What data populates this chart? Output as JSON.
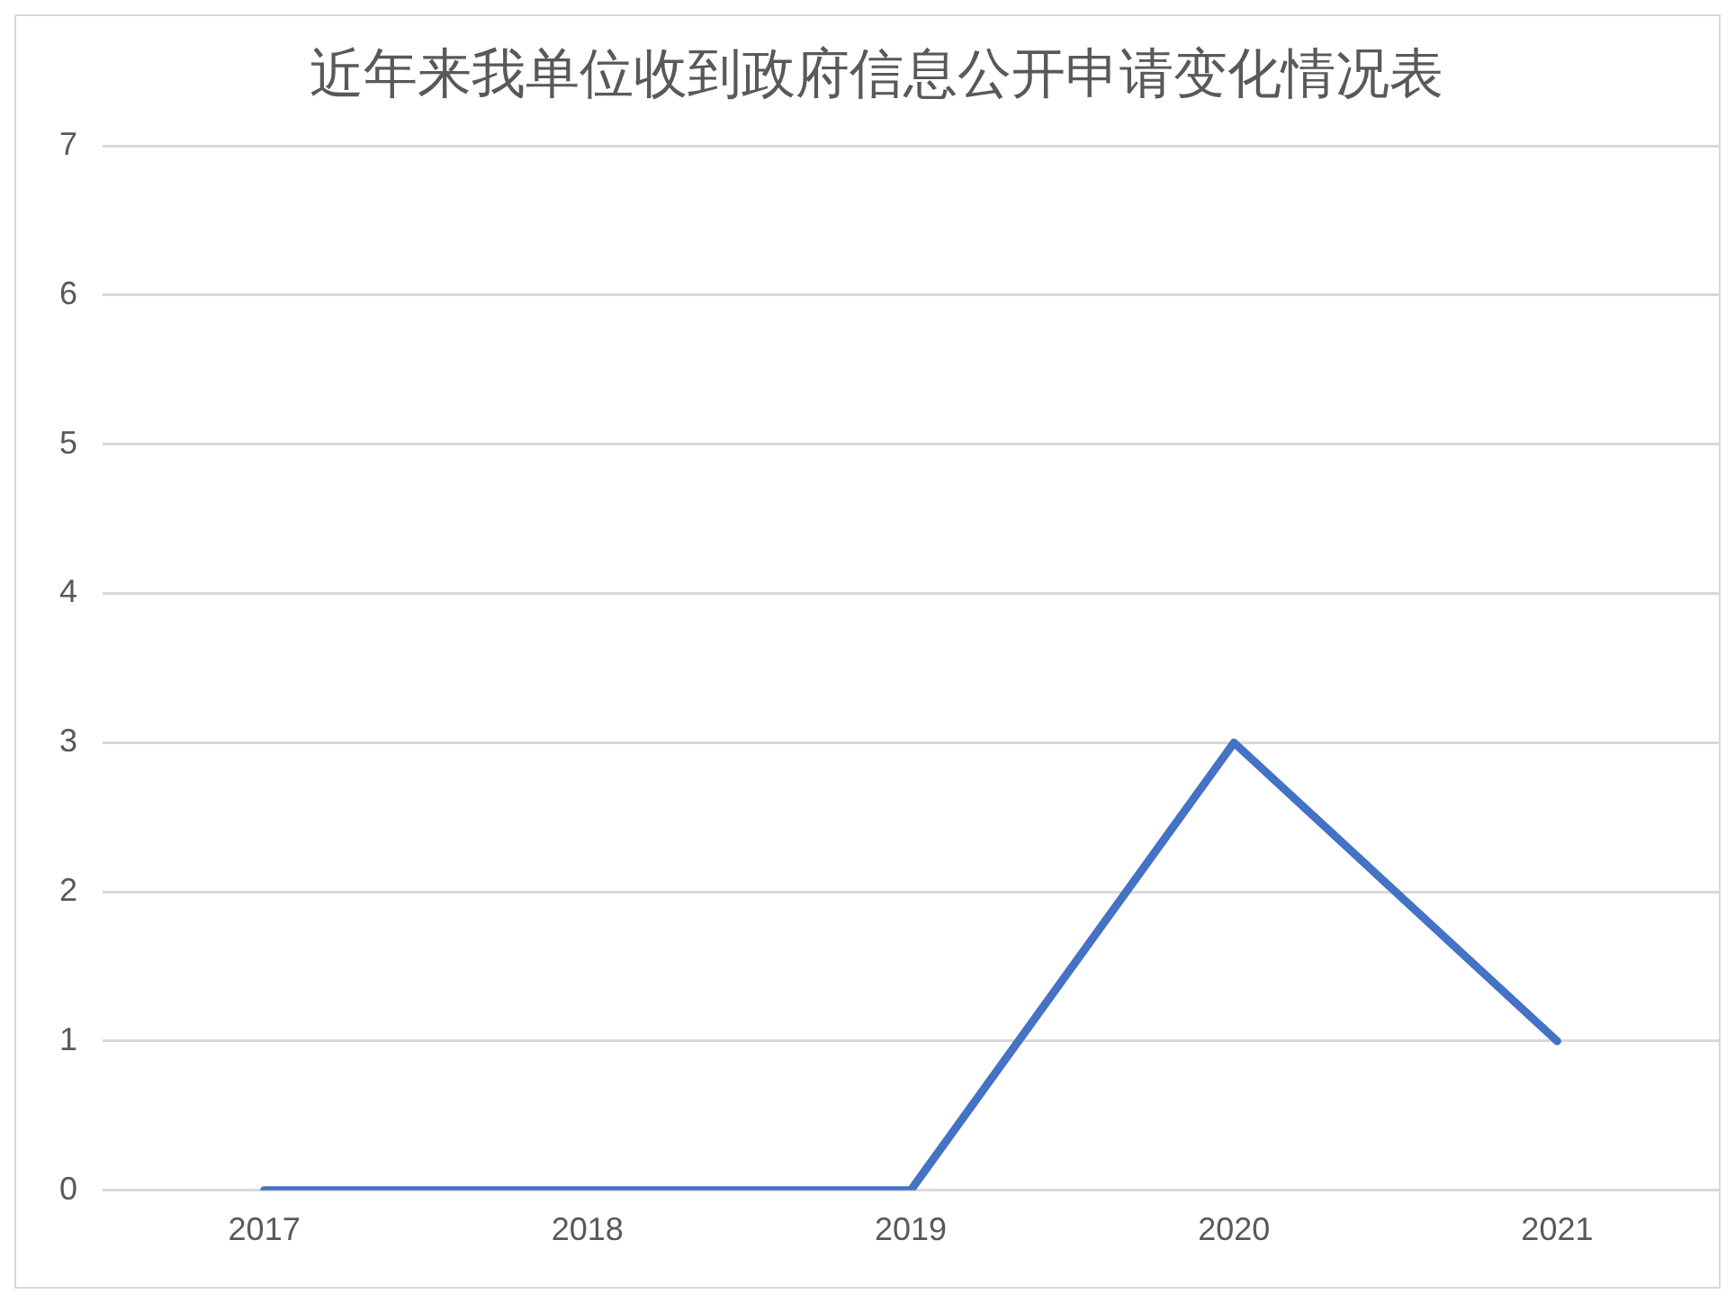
{
  "chart_data": {
    "type": "line",
    "title": "近年来我单位收到政府信息公开申请变化情况表",
    "categories": [
      "2017",
      "2018",
      "2019",
      "2020",
      "2021"
    ],
    "series": [
      {
        "color": "#4472c4",
        "values": [
          0,
          0,
          0,
          3,
          1
        ]
      }
    ],
    "ylim": [
      0,
      7
    ],
    "yticks": [
      0,
      1,
      2,
      3,
      4,
      5,
      6,
      7
    ],
    "grid": "y",
    "legend": false,
    "marker": "none",
    "line_style": "solid"
  }
}
